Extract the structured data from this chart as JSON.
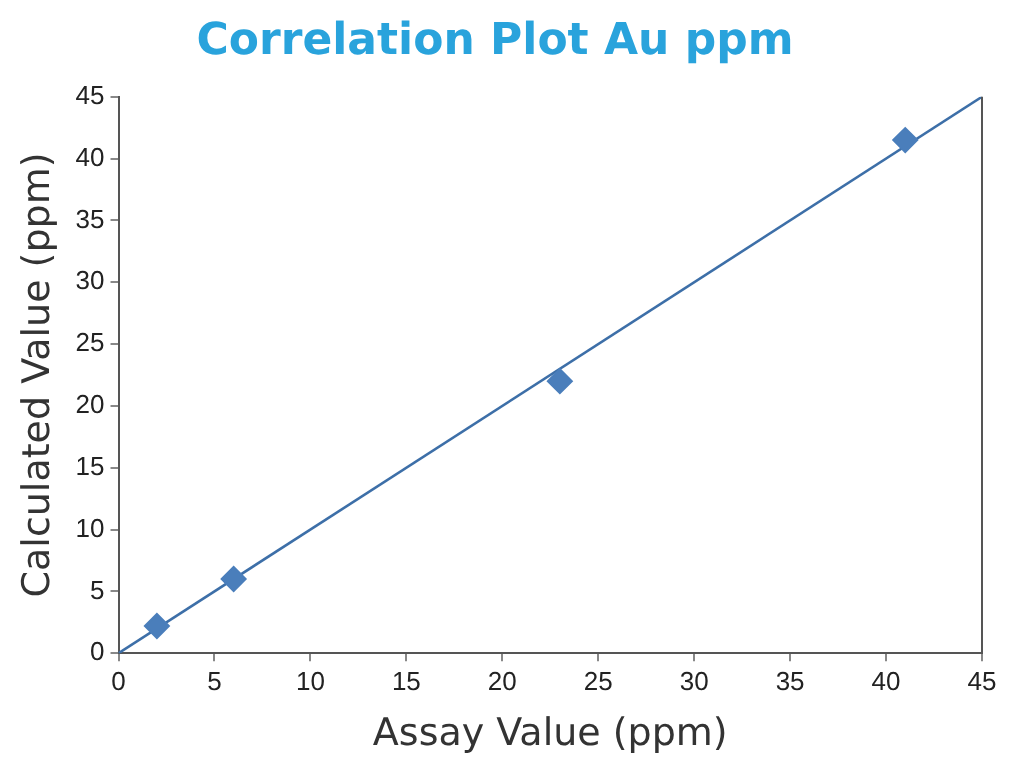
{
  "chart_data": {
    "type": "scatter",
    "title": "Correlation Plot Au ppm",
    "xlabel": "Assay Value (ppm)",
    "ylabel": "Calculated Value (ppm)",
    "marker": "diamond",
    "grid": false,
    "legend": false,
    "series": [
      {
        "color": "#4a7ebb",
        "x": [
          2,
          6,
          23,
          41
        ],
        "values": [
          2.2,
          6,
          22,
          41.5
        ]
      },
      {
        "type": "line",
        "color": "#3d6fa8",
        "x": [
          0,
          45
        ],
        "values": [
          0,
          45
        ],
        "marker": "none",
        "line_style": "solid"
      }
    ],
    "xlim": [
      0,
      45
    ],
    "ylim": [
      0,
      45
    ],
    "xticks": [
      0,
      5,
      10,
      15,
      20,
      25,
      30,
      35,
      40,
      45
    ],
    "yticks": [
      0,
      5,
      10,
      15,
      20,
      25,
      30,
      35,
      40,
      45
    ]
  }
}
